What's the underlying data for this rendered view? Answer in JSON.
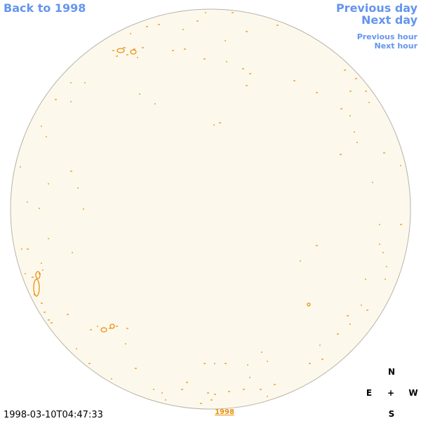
{
  "navigation": {
    "back": "Back to 1998",
    "previous_day": "Previous day",
    "next_day": "Next day",
    "previous_hour": "Previous hour",
    "next_hour": "Next hour"
  },
  "timestamp": "1998-03-10T04:47:33",
  "year_link": "1998",
  "compass": {
    "north": "N",
    "east": "E",
    "center": "+",
    "west": "W",
    "south": "S"
  }
}
